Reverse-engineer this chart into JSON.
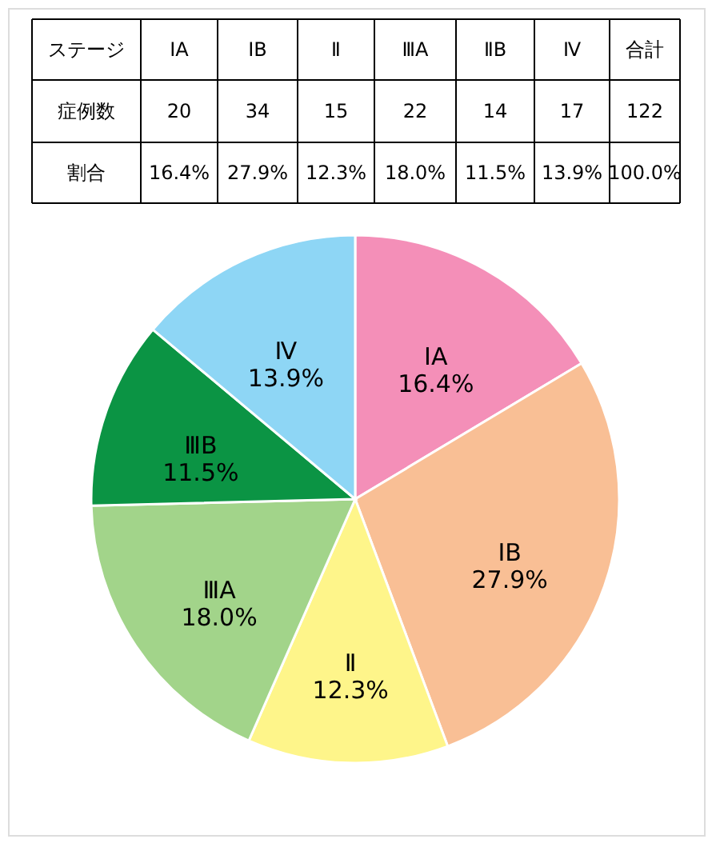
{
  "chart_data": {
    "type": "pie",
    "categories": [
      "ⅠA",
      "ⅠB",
      "Ⅱ",
      "ⅢA",
      "ⅢB",
      "Ⅳ"
    ],
    "values": [
      16.4,
      27.9,
      12.3,
      18.0,
      11.5,
      13.9
    ],
    "value_labels": [
      "16.4%",
      "27.9%",
      "12.3%",
      "18.0%",
      "11.5%",
      "13.9%"
    ],
    "colors": [
      "#f48fb8",
      "#f9bf95",
      "#fef58a",
      "#a2d48a",
      "#0b9444",
      "#8ed6f5"
    ],
    "annotations": [
      "ステージ",
      "ⅠA",
      "ⅠB",
      "Ⅱ",
      "ⅢA",
      "ⅡB",
      "Ⅳ",
      "合計",
      "症例数",
      "割合",
      "122",
      "100.0%",
      "20",
      "34",
      "15",
      "22",
      "14",
      "17"
    ],
    "legend": false
  }
}
